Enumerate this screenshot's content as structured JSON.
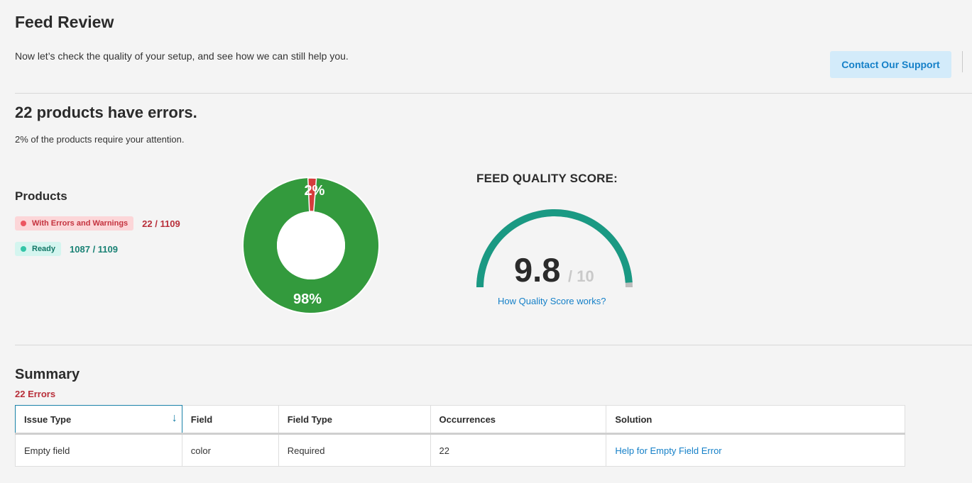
{
  "header": {
    "title": "Feed Review",
    "subtitle": "Now let’s check the quality of your setup, and see how we can still help you.",
    "support_button": "Contact Our Support"
  },
  "errors_summary": {
    "heading": "22 products have errors.",
    "subtext": "2% of the products require your attention."
  },
  "products": {
    "title": "Products",
    "legend": [
      {
        "label": "With Errors and Warnings",
        "count": "22 / 1109"
      },
      {
        "label": "Ready",
        "count": "1087 / 1109"
      }
    ]
  },
  "donut": {
    "error_label": "2%",
    "ready_label": "98%",
    "error_fraction": 0.02,
    "colors": {
      "ready": "#339a3d",
      "error": "#d63c3c"
    }
  },
  "quality": {
    "title": "FEED QUALITY SCORE:",
    "score": "9.8",
    "max": "/ 10",
    "score_fraction": 0.98,
    "link": "How Quality Score works?",
    "colors": {
      "arc": "#1a9983",
      "remaining": "#bdbdbd"
    }
  },
  "summary": {
    "title": "Summary",
    "errors_label": "22 Errors",
    "columns": [
      "Issue Type",
      "Field",
      "Field Type",
      "Occurrences",
      "Solution"
    ],
    "rows": [
      {
        "issue_type": "Empty field",
        "field": "color",
        "field_type": "Required",
        "occurrences": "22",
        "solution": "Help for Empty Field Error"
      }
    ]
  }
}
